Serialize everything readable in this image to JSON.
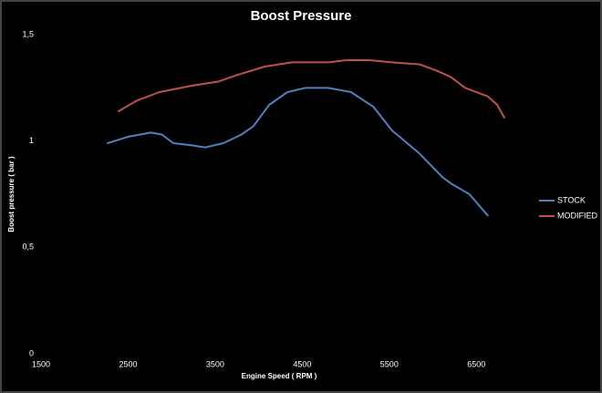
{
  "chart_data": {
    "type": "line",
    "title": "Boost Pressure",
    "x_label": "Engine Speed ( RPM )",
    "y_label": "Boost pressure ( bar )",
    "xlim": [
      1500,
      7000
    ],
    "xticks": [
      1500,
      2500,
      3500,
      4500,
      5500,
      6500
    ],
    "ylim": [
      0,
      1.5
    ],
    "yticks": [
      0,
      {
        "value": 0.5,
        "label": "0,5"
      },
      1,
      {
        "value": 1.5,
        "label": "1,5"
      }
    ],
    "legend": "right",
    "series": [
      {
        "name": "STOCK",
        "color": "#4f81bd",
        "x": [
          2265,
          2500,
          2760,
          2890,
          3020,
          3230,
          3385,
          3595,
          3800,
          3940,
          4120,
          4330,
          4540,
          4800,
          5060,
          5320,
          5530,
          5850,
          6110,
          6210,
          6420,
          6630
        ],
        "values": [
          0.99,
          1.02,
          1.04,
          1.03,
          0.99,
          0.98,
          0.97,
          0.99,
          1.03,
          1.07,
          1.17,
          1.23,
          1.25,
          1.25,
          1.23,
          1.16,
          1.05,
          0.94,
          0.83,
          0.8,
          0.75,
          0.65
        ]
      },
      {
        "name": "MODIFIED",
        "color": "#c0504d",
        "x": [
          2390,
          2600,
          2860,
          3230,
          3540,
          3750,
          4070,
          4380,
          4800,
          5010,
          5270,
          5530,
          5850,
          6050,
          6210,
          6370,
          6630,
          6740,
          6820
        ],
        "values": [
          1.14,
          1.19,
          1.23,
          1.26,
          1.28,
          1.31,
          1.35,
          1.37,
          1.37,
          1.38,
          1.38,
          1.37,
          1.36,
          1.33,
          1.3,
          1.25,
          1.21,
          1.17,
          1.11
        ]
      }
    ]
  }
}
